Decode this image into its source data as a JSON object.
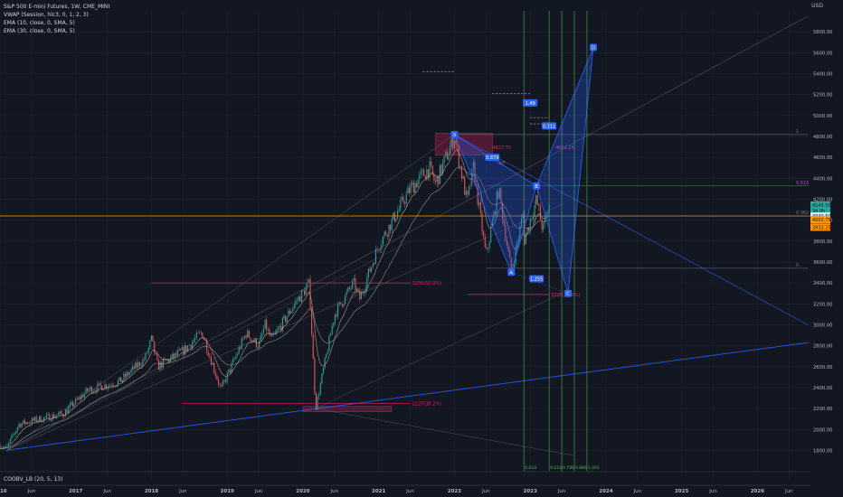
{
  "legend": {
    "title": "S&P 500 E-mini Futures, 1W, CME_MINI",
    "indicators": [
      "VWAP (Session, hlc3, 0, 1, 2, 3)",
      "EMA (10, close, 0, SMA, 5)",
      "EMA (30, close, 0, SMA, 5)"
    ],
    "oscillator": "COOBV_LB (20, 5, 13)"
  },
  "colors": {
    "background": "#131722",
    "grid": "#1e222d",
    "up": "#26a69a",
    "down": "#ef5350",
    "harmonic": "#2962ff",
    "zone": "#8b1e3f",
    "orange": "#ff9800",
    "fib_line": "#4caf50"
  },
  "chart_data": {
    "type": "candlestick",
    "currency": "USD",
    "ylim": [
      1700,
      6000
    ],
    "y_ticks": [
      1800,
      2000,
      2200,
      2400,
      2600,
      2800,
      3000,
      3200,
      3400,
      3600,
      3800,
      4000,
      4200,
      4400,
      4600,
      4800,
      5000,
      5200,
      5400,
      5600,
      5800
    ],
    "x_range": [
      "2016-01",
      "2026-09"
    ],
    "x_ticks": [
      {
        "t": "2016-01",
        "label": "2016"
      },
      {
        "t": "2016-06",
        "label": "Jun"
      },
      {
        "t": "2017-01",
        "label": "2017"
      },
      {
        "t": "2017-06",
        "label": "Jun"
      },
      {
        "t": "2018-01",
        "label": "2018"
      },
      {
        "t": "2018-06",
        "label": "Jun"
      },
      {
        "t": "2019-01",
        "label": "2019"
      },
      {
        "t": "2019-06",
        "label": "Jun"
      },
      {
        "t": "2020-01",
        "label": "2020"
      },
      {
        "t": "2020-06",
        "label": "Jun"
      },
      {
        "t": "2021-01",
        "label": "2021"
      },
      {
        "t": "2021-06",
        "label": "Jun"
      },
      {
        "t": "2022-01",
        "label": "2022"
      },
      {
        "t": "2022-06",
        "label": "Jun"
      },
      {
        "t": "2023-01",
        "label": "2023"
      },
      {
        "t": "2023-06",
        "label": "Jun"
      },
      {
        "t": "2024-01",
        "label": "2024"
      },
      {
        "t": "2024-06",
        "label": "Jun"
      },
      {
        "t": "2025-01",
        "label": "2025"
      },
      {
        "t": "2025-06",
        "label": "Jun"
      },
      {
        "t": "2026-01",
        "label": "2026"
      },
      {
        "t": "2026-06",
        "label": "Jun"
      }
    ],
    "price_path": [
      [
        "2016-01",
        1850
      ],
      [
        "2016-02",
        1820
      ],
      [
        "2016-04",
        2050
      ],
      [
        "2016-06",
        2080
      ],
      [
        "2016-11",
        2150
      ],
      [
        "2017-03",
        2380
      ],
      [
        "2017-08",
        2460
      ],
      [
        "2017-12",
        2680
      ],
      [
        "2018-01",
        2860
      ],
      [
        "2018-02",
        2600
      ],
      [
        "2018-06",
        2750
      ],
      [
        "2018-09",
        2930
      ],
      [
        "2018-12",
        2380
      ],
      [
        "2019-04",
        2920
      ],
      [
        "2019-06",
        2800
      ],
      [
        "2019-07",
        3000
      ],
      [
        "2019-08",
        2850
      ],
      [
        "2019-12",
        3230
      ],
      [
        "2020-02",
        3390
      ],
      [
        "2020-03",
        2200
      ],
      [
        "2020-06",
        3100
      ],
      [
        "2020-09",
        3400
      ],
      [
        "2020-10",
        3250
      ],
      [
        "2021-01",
        3760
      ],
      [
        "2021-06",
        4300
      ],
      [
        "2021-09",
        4500
      ],
      [
        "2021-10",
        4350
      ],
      [
        "2022-01",
        4800
      ],
      [
        "2022-03",
        4170
      ],
      [
        "2022-04",
        4500
      ],
      [
        "2022-06",
        3650
      ],
      [
        "2022-08",
        4300
      ],
      [
        "2022-10",
        3500
      ],
      [
        "2022-12",
        4100
      ],
      [
        "2022-12",
        3800
      ],
      [
        "2023-02",
        4200
      ],
      [
        "2023-03",
        3900
      ],
      [
        "2023-04",
        4150
      ]
    ],
    "ema_fast_label": "EMA (10, close, 0, SMA, 5)",
    "ema_slow_label": "EMA (30, close, 0, SMA, 5)",
    "price_labels": [
      {
        "value": 4145.5,
        "label": "4145.50",
        "color": "#26a69a"
      },
      {
        "value": 4090,
        "label": "3d 0h",
        "color": "#26a69a"
      },
      {
        "value": 4037,
        "label": "4037.00",
        "color": "#ffd54f"
      },
      {
        "value": 4040.5,
        "label": "4040.50",
        "color": "#e0e0e0"
      },
      {
        "value": 4003.75,
        "label": "4003.75",
        "color": "#ff9800"
      },
      {
        "value": 3932.25,
        "label": "3932.25",
        "color": "#ff9800"
      }
    ],
    "harmonic_points": [
      {
        "name": "X",
        "t": "2022-01",
        "value": 4818
      },
      {
        "name": "A",
        "t": "2022-10",
        "value": 3502
      },
      {
        "name": "B",
        "t": "2023-02",
        "value": 4327
      },
      {
        "name": "C",
        "t": "2023-07",
        "value": 3300
      },
      {
        "name": "D",
        "t": "2023-11",
        "value": 5650
      }
    ],
    "harmonic_ratios": [
      {
        "label": "1.49",
        "t": "2023-01",
        "value": 5120
      },
      {
        "label": "0.111",
        "t": "2023-04",
        "value": 4900
      },
      {
        "label": "0.879",
        "t": "2022-07",
        "value": 4600
      },
      {
        "label": "1.255",
        "t": "2023-02",
        "value": 3440
      }
    ],
    "zones": [
      {
        "t_start": "2021-10",
        "t_end": "2022-07",
        "low": 4620,
        "high": 4830
      },
      {
        "t_start": "2020-01",
        "t_end": "2021-03",
        "low": 2170,
        "high": 2220
      }
    ],
    "magenta_levels": [
      {
        "value": 3400,
        "t_start": "2018-01",
        "t_end": "2021-06",
        "label": "3200(50.0%)"
      },
      {
        "value": 2250,
        "t_start": "2018-06",
        "t_end": "2021-06",
        "label": "2227(38.2%)"
      },
      {
        "value": 3290,
        "t_start": "2022-03",
        "t_end": "2023-04",
        "label": "3326(78.6%)"
      }
    ],
    "hlevels": [
      {
        "value": 4818,
        "t_start": "2022-01",
        "t_end": "2026-09",
        "label": "1"
      },
      {
        "value": 4327,
        "t_start": "2022-06",
        "t_end": "2026-09",
        "label": "0.618"
      },
      {
        "value": 4040,
        "t_start": "2022-01",
        "t_end": "2026-09",
        "label": "0.382"
      },
      {
        "value": 3540,
        "t_start": "2022-06",
        "t_end": "2026-09",
        "label": "0"
      }
    ],
    "fib_time_labels": [
      "0.618",
      "0.618",
      "0.786",
      "0.886",
      "1.001"
    ],
    "top_annotations": [
      "4817.75",
      "4822.25"
    ],
    "mid_annotation": "4/7"
  }
}
